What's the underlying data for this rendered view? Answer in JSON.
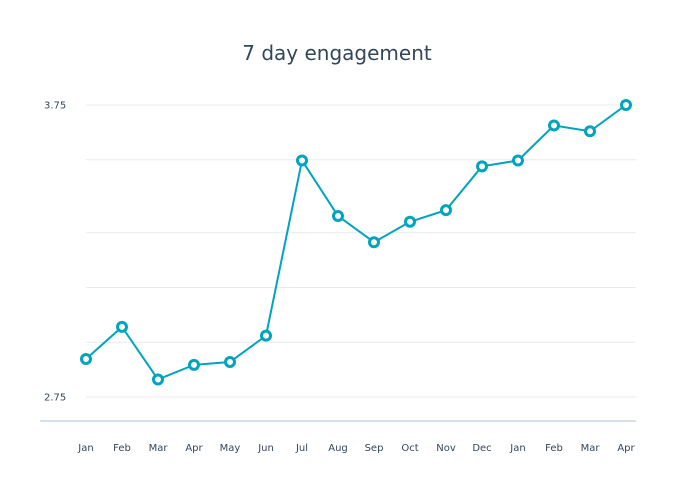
{
  "chart_data": {
    "type": "line",
    "title": "7 day engagement",
    "xlabel": "",
    "ylabel": "",
    "categories": [
      "Jan",
      "Feb",
      "Mar",
      "Apr",
      "May",
      "Jun",
      "Jul",
      "Aug",
      "Sep",
      "Oct",
      "Nov",
      "Dec",
      "Jan",
      "Feb",
      "Mar",
      "Apr"
    ],
    "series": [
      {
        "values": [
          2.88,
          2.99,
          2.81,
          2.86,
          2.87,
          2.96,
          3.56,
          3.37,
          3.28,
          3.35,
          3.39,
          3.54,
          3.56,
          3.68,
          3.66,
          3.75
        ]
      }
    ],
    "ylim": [
      2.75,
      3.75
    ],
    "y_ticks": [
      "3.75",
      "2.75"
    ],
    "y_gridlines": [
      2.75,
      2.9375,
      3.125,
      3.3125,
      3.5625,
      3.75
    ],
    "grid": true,
    "legend": "none",
    "colors": {
      "series": "#00a4bd",
      "grid": "#e7ebef",
      "axis": "#cbd6e2",
      "text": "#33475b"
    }
  }
}
